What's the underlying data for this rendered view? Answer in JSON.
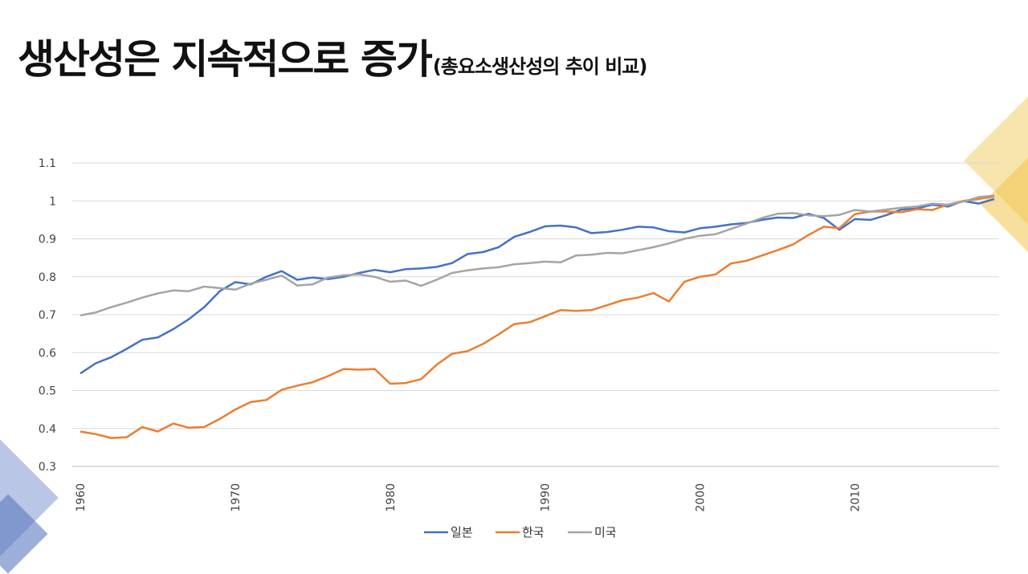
{
  "header": {
    "title": "생산성은 지속적으로 증가",
    "subtitle": "(총요소생산성의 추이 비교)"
  },
  "chart_data": {
    "type": "line",
    "ylim": [
      0.3,
      1.1
    ],
    "yticks": [
      "0.3",
      "0.4",
      "0.5",
      "0.6",
      "0.7",
      "0.8",
      "0.9",
      "1",
      "1.1"
    ],
    "xlim": [
      1960,
      2019
    ],
    "xticks": [
      "1960",
      "1970",
      "1980",
      "1990",
      "2000",
      "2010"
    ],
    "grid": true,
    "legend": "bottom-center",
    "x": [
      1960,
      1961,
      1962,
      1963,
      1964,
      1965,
      1966,
      1967,
      1968,
      1969,
      1970,
      1971,
      1972,
      1973,
      1974,
      1975,
      1976,
      1977,
      1978,
      1979,
      1980,
      1981,
      1982,
      1983,
      1984,
      1985,
      1986,
      1987,
      1988,
      1989,
      1990,
      1991,
      1992,
      1993,
      1994,
      1995,
      1996,
      1997,
      1998,
      1999,
      2000,
      2001,
      2002,
      2003,
      2004,
      2005,
      2006,
      2007,
      2008,
      2009,
      2010,
      2011,
      2012,
      2013,
      2014,
      2015,
      2016,
      2017,
      2018,
      2019
    ],
    "series": [
      {
        "name": "일본",
        "color": "#4472c4",
        "values": [
          0.545,
          0.572,
          0.588,
          0.61,
          0.634,
          0.64,
          0.662,
          0.688,
          0.72,
          0.762,
          0.786,
          0.78,
          0.8,
          0.815,
          0.792,
          0.798,
          0.794,
          0.8,
          0.81,
          0.818,
          0.812,
          0.82,
          0.822,
          0.826,
          0.836,
          0.86,
          0.865,
          0.878,
          0.905,
          0.918,
          0.933,
          0.935,
          0.93,
          0.915,
          0.918,
          0.924,
          0.932,
          0.93,
          0.92,
          0.917,
          0.928,
          0.932,
          0.938,
          0.942,
          0.95,
          0.956,
          0.955,
          0.966,
          0.955,
          0.924,
          0.952,
          0.95,
          0.962,
          0.977,
          0.98,
          0.99,
          0.985,
          1.0,
          0.993,
          1.005
        ]
      },
      {
        "name": "한국",
        "color": "#ed7d31",
        "values": [
          0.392,
          0.385,
          0.375,
          0.377,
          0.404,
          0.392,
          0.413,
          0.402,
          0.404,
          0.425,
          0.45,
          0.47,
          0.475,
          0.502,
          0.513,
          0.522,
          0.538,
          0.557,
          0.555,
          0.557,
          0.518,
          0.52,
          0.53,
          0.568,
          0.597,
          0.604,
          0.623,
          0.648,
          0.675,
          0.68,
          0.696,
          0.712,
          0.71,
          0.712,
          0.725,
          0.738,
          0.745,
          0.757,
          0.735,
          0.787,
          0.8,
          0.806,
          0.835,
          0.842,
          0.856,
          0.87,
          0.885,
          0.91,
          0.932,
          0.928,
          0.965,
          0.972,
          0.972,
          0.97,
          0.978,
          0.976,
          0.99,
          1.0,
          1.005,
          1.012
        ]
      },
      {
        "name": "미국",
        "color": "#a5a5a5",
        "values": [
          0.698,
          0.706,
          0.72,
          0.732,
          0.745,
          0.756,
          0.764,
          0.762,
          0.774,
          0.77,
          0.766,
          0.782,
          0.792,
          0.803,
          0.777,
          0.78,
          0.798,
          0.804,
          0.806,
          0.8,
          0.787,
          0.79,
          0.776,
          0.792,
          0.81,
          0.817,
          0.822,
          0.825,
          0.833,
          0.836,
          0.84,
          0.838,
          0.856,
          0.858,
          0.863,
          0.862,
          0.87,
          0.878,
          0.888,
          0.9,
          0.908,
          0.912,
          0.926,
          0.94,
          0.955,
          0.966,
          0.968,
          0.962,
          0.96,
          0.963,
          0.976,
          0.972,
          0.977,
          0.982,
          0.985,
          0.993,
          0.99,
          0.998,
          1.01,
          1.014
        ]
      }
    ]
  }
}
